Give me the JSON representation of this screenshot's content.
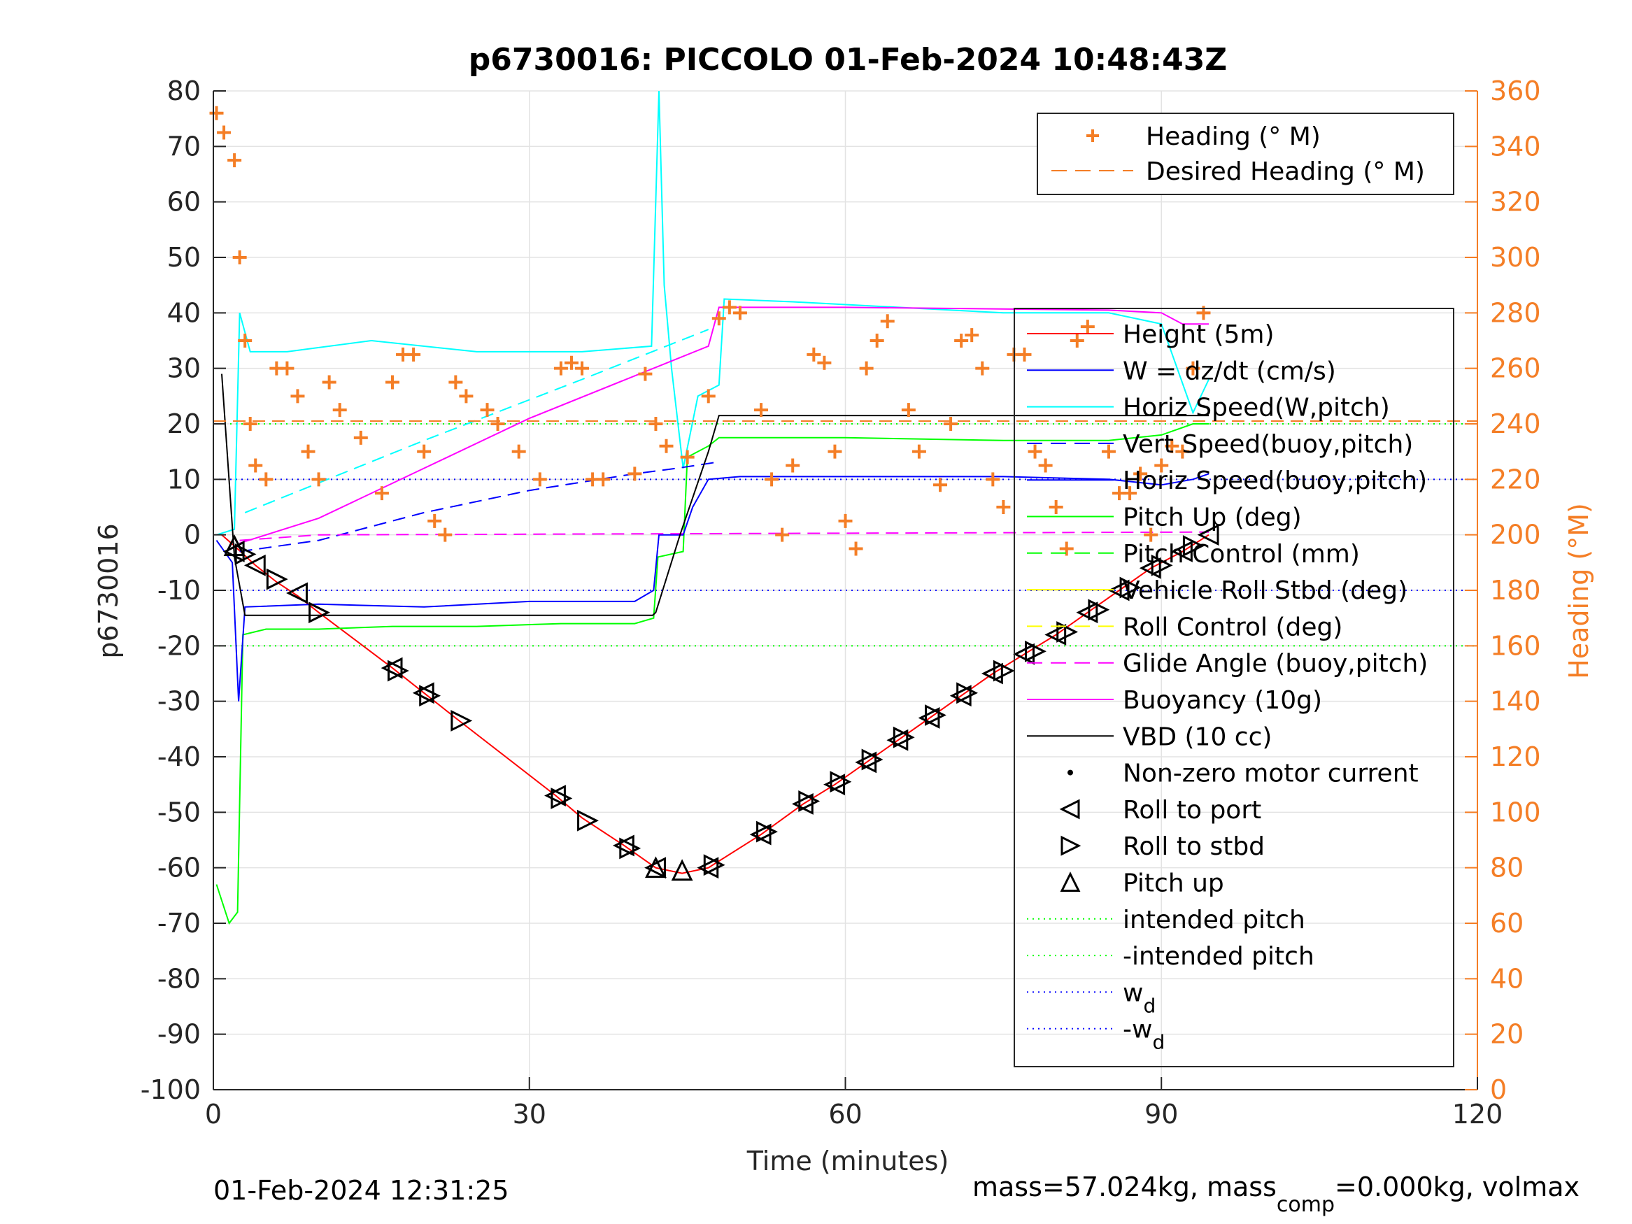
{
  "chart_data": {
    "type": "line",
    "title": "p6730016: PICCOLO 01-Feb-2024 10:48:43Z",
    "xlabel": "Time (minutes)",
    "ylabel_left": "p6730016",
    "ylabel_right": "Heading (°M)",
    "xlim": [
      0,
      120
    ],
    "ylim_left": [
      -100,
      80
    ],
    "ylim_right": [
      0,
      360
    ],
    "xticks": [
      "0",
      "30",
      "60",
      "90",
      "120"
    ],
    "yticks_left": [
      "80",
      "70",
      "60",
      "50",
      "40",
      "30",
      "20",
      "10",
      "0",
      "-10",
      "-20",
      "-30",
      "-40",
      "-50",
      "-60",
      "-70",
      "-80",
      "-90",
      "-100"
    ],
    "yticks_right": [
      "360",
      "340",
      "320",
      "300",
      "280",
      "260",
      "240",
      "220",
      "200",
      "180",
      "160",
      "140",
      "120",
      "100",
      "80",
      "60",
      "40",
      "20",
      "0"
    ],
    "grid": true,
    "footer_left": "01-Feb-2024 12:31:25",
    "footer_right_main": "mass=57.024kg, mass",
    "footer_right_sub": "comp",
    "footer_right_tail": "=0.000kg, volmax",
    "heading_legend": {
      "placement": "top-right",
      "entries": [
        "Heading (° M)",
        "Desired Heading (° M)"
      ]
    },
    "main_legend": {
      "placement": "right",
      "entries": [
        {
          "label": "Height (5m)",
          "color": "#ff0000",
          "style": "solid"
        },
        {
          "label": "W = dz/dt (cm/s)",
          "color": "#0000ff",
          "style": "solid"
        },
        {
          "label": "Horiz Speed(W,pitch)",
          "color": "#00ffff",
          "style": "solid"
        },
        {
          "label": "Vert Speed(buoy,pitch)",
          "color": "#0000ff",
          "style": "dashed"
        },
        {
          "label": "Horiz Speed(buoy,pitch)",
          "color": "#0000ff",
          "style": "solid"
        },
        {
          "label": "Pitch Up (deg)",
          "color": "#00ff00",
          "style": "solid"
        },
        {
          "label": "Pitch Control (mm)",
          "color": "#00ff00",
          "style": "dashed"
        },
        {
          "label": "Vehicle Roll Stbd (deg)",
          "color": "#ffff00",
          "style": "solid"
        },
        {
          "label": "Roll Control (deg)",
          "color": "#ffff00",
          "style": "dashed"
        },
        {
          "label": "Glide Angle (buoy,pitch)",
          "color": "#ff00ff",
          "style": "dashed"
        },
        {
          "label": "Buoyancy (10g)",
          "color": "#ff00ff",
          "style": "solid"
        },
        {
          "label": "VBD (10 cc)",
          "color": "#000000",
          "style": "solid"
        },
        {
          "label": "Non-zero motor current",
          "color": "#000000",
          "style": "dot"
        },
        {
          "label": "Roll to port",
          "color": "#000000",
          "style": "tri-left"
        },
        {
          "label": "Roll to stbd",
          "color": "#000000",
          "style": "tri-right"
        },
        {
          "label": "Pitch up",
          "color": "#000000",
          "style": "tri-up"
        },
        {
          "label": "intended pitch",
          "color": "#00ff00",
          "style": "dotted"
        },
        {
          "label": "-intended pitch",
          "color": "#00ff00",
          "style": "dotted"
        },
        {
          "label": "w",
          "sub": "d",
          "color": "#0000ff",
          "style": "dotted"
        },
        {
          "label": "-w",
          "sub": "d",
          "color": "#0000ff",
          "style": "dotted"
        }
      ]
    },
    "series": [
      {
        "name": "Height (5m)",
        "axis": "left",
        "color": "#ff0000",
        "x": [
          0.8,
          2,
          4,
          6,
          8,
          10,
          17,
          20,
          23,
          32.5,
          35,
          39,
          42,
          44.5,
          47,
          52,
          56,
          59,
          62,
          65,
          68,
          71,
          74,
          77,
          80,
          83,
          86,
          89,
          92,
          94.5
        ],
        "y": [
          0,
          -2,
          -5.5,
          -8.5,
          -11,
          -14,
          -24,
          -28.5,
          -33,
          -47,
          -51,
          -56,
          -60,
          -61,
          -60,
          -54,
          -48.5,
          -45,
          -41,
          -37,
          -33,
          -29,
          -25,
          -21.5,
          -18,
          -14,
          -10,
          -6,
          -3,
          0
        ]
      },
      {
        "name": "Pitch Up (deg)",
        "axis": "left",
        "color": "#00ff00",
        "x": [
          0.3,
          1.5,
          2.3,
          2.8,
          5,
          10,
          17,
          25,
          33,
          40,
          41.8,
          42.2,
          44.6,
          45,
          47,
          48,
          60,
          75,
          85,
          90,
          93,
          94.5
        ],
        "y": [
          -63,
          -70,
          -68,
          -18,
          -17,
          -17,
          -16.5,
          -16.5,
          -16,
          -16,
          -15,
          -4,
          -3,
          14,
          16,
          17.5,
          17.5,
          17,
          17,
          18,
          20,
          20
        ]
      },
      {
        "name": "W = dz/dt (cm/s)",
        "axis": "left",
        "color": "#0000ff",
        "x": [
          0.3,
          1.8,
          2.4,
          3,
          10,
          20,
          30,
          40,
          41.8,
          42.3,
          44.6,
          45.5,
          47,
          50,
          60,
          75,
          85,
          90,
          93,
          94.5
        ],
        "y": [
          -1,
          -5,
          -30,
          -13,
          -12.5,
          -13,
          -12,
          -12,
          -10,
          0,
          0,
          5,
          10,
          10.5,
          10.5,
          10.5,
          10,
          9,
          10,
          11
        ]
      },
      {
        "name": "Horiz Speed(W,pitch)",
        "axis": "left",
        "color": "#00ffff",
        "x": [
          0.3,
          2,
          2.5,
          3.5,
          7,
          15,
          25,
          35,
          41.6,
          42.3,
          42.8,
          43.5,
          44.6,
          46,
          48,
          48.5,
          55,
          65,
          75,
          85,
          90,
          93,
          94.5
        ],
        "y": [
          0,
          1,
          40,
          33,
          33,
          35,
          33,
          33,
          34,
          80,
          45,
          30,
          12,
          25,
          27,
          42.5,
          42,
          41,
          40,
          40,
          38,
          22,
          28
        ]
      },
      {
        "name": "Vert Speed(buoy,pitch)",
        "axis": "left",
        "color": "#0000ff",
        "dashed": true,
        "x": [
          2.5,
          10,
          20,
          30,
          40,
          44,
          47.5
        ],
        "y": [
          -3,
          -1,
          4,
          8,
          11,
          12,
          13
        ]
      },
      {
        "name": "Glide Angle (buoy,pitch)",
        "axis": "left",
        "color": "#ff00ff",
        "dashed": true,
        "x": [
          2.5,
          10,
          94.5
        ],
        "y": [
          -1,
          0,
          0.5
        ]
      },
      {
        "name": "Buoyancy (10g)",
        "axis": "left",
        "color": "#ff00ff",
        "x": [
          2.5,
          10,
          20,
          30,
          47,
          48,
          60,
          85,
          90,
          92,
          94.5
        ],
        "y": [
          -1.5,
          3,
          12,
          21,
          34,
          41,
          41,
          40.5,
          40,
          38,
          38
        ]
      },
      {
        "name": "VBD (10 cc)",
        "axis": "left",
        "color": "#000000",
        "x": [
          0.8,
          2,
          3,
          10,
          41.7,
          42,
          44.3,
          47,
          48,
          94.5
        ],
        "y": [
          29,
          -4,
          -14.5,
          -14.5,
          -14.5,
          -14,
          0,
          15,
          21.5,
          21.5
        ]
      },
      {
        "name": "Horiz Speed cyan dashed",
        "axis": "left",
        "color": "#00ffff",
        "dashed": true,
        "x": [
          3,
          20,
          35,
          47
        ],
        "y": [
          4,
          17,
          28,
          37
        ]
      },
      {
        "name": "Heading (° M)",
        "axis": "right",
        "color": "#f47e26",
        "marker": "+",
        "x": [
          0.3,
          1,
          2,
          2.5,
          3,
          3.5,
          4,
          5,
          6,
          7,
          8,
          9,
          10,
          11,
          12,
          14,
          16,
          17,
          18,
          19,
          20,
          21,
          22,
          23,
          24,
          26,
          27,
          29,
          31,
          33,
          34,
          35,
          36,
          37,
          40,
          41,
          42,
          43,
          45,
          47,
          48,
          49,
          50,
          52,
          53,
          54,
          55,
          57,
          58,
          59,
          60,
          61,
          62,
          63,
          64,
          66,
          67,
          69,
          70,
          71,
          72,
          73,
          74,
          75,
          76,
          77,
          78,
          79,
          80,
          81,
          82,
          83,
          85,
          86,
          87,
          88,
          89,
          90,
          91,
          92,
          93,
          94
        ],
        "y": [
          352,
          345,
          335,
          300,
          270,
          240,
          225,
          220,
          260,
          260,
          250,
          230,
          220,
          255,
          245,
          235,
          215,
          255,
          265,
          265,
          230,
          205,
          200,
          255,
          250,
          245,
          240,
          230,
          220,
          260,
          262,
          260,
          220,
          220,
          222,
          258,
          240,
          232,
          228,
          250,
          278,
          282,
          280,
          245,
          220,
          200,
          225,
          265,
          262,
          230,
          205,
          195,
          260,
          270,
          277,
          245,
          230,
          218,
          240,
          270,
          272,
          260,
          220,
          210,
          265,
          265,
          230,
          225,
          210,
          195,
          270,
          275,
          230,
          215,
          215,
          222,
          200,
          225,
          232,
          230,
          260,
          280
        ]
      },
      {
        "name": "Desired Heading (° M)",
        "axis": "right",
        "color": "#f47e26",
        "dashed": true,
        "x": [
          0,
          120
        ],
        "y": [
          241,
          241
        ]
      }
    ],
    "reference_lines": [
      {
        "name": "intended pitch",
        "axis": "left",
        "y": 20,
        "color": "#00ff00"
      },
      {
        "name": "-intended pitch",
        "axis": "left",
        "y": -20,
        "color": "#00ff00"
      },
      {
        "name": "w_d",
        "axis": "left",
        "y": 10,
        "color": "#0000ff"
      },
      {
        "name": "-w_d",
        "axis": "left",
        "y": -10,
        "color": "#0000ff"
      }
    ],
    "markers": {
      "roll_to_port": {
        "x": [
          2,
          4,
          8,
          17,
          20,
          32.5,
          39,
          42,
          47,
          52,
          56,
          59,
          62,
          65,
          68,
          71,
          74,
          77,
          80,
          83,
          86,
          89,
          92,
          94.5
        ],
        "y": [
          -3,
          -5.5,
          -10.5,
          -24,
          -28.5,
          -47,
          -56,
          -60,
          -60,
          -54,
          -48.5,
          -45,
          -41,
          -37,
          -33,
          -29,
          -25,
          -21.5,
          -18,
          -14,
          -10,
          -6,
          -3,
          0
        ]
      },
      "roll_to_stbd": {
        "x": [
          3,
          6,
          10,
          17.5,
          20.5,
          23.5,
          33,
          35.5,
          39.5,
          47.5,
          52.5,
          56.5,
          59.5,
          62.5,
          65.5,
          68.5,
          71.5,
          75,
          78,
          81,
          84,
          87,
          90,
          93
        ],
        "y": [
          -3.5,
          -8,
          -14,
          -24.5,
          -29,
          -33.5,
          -47.5,
          -51.5,
          -56.5,
          -59.5,
          -53.5,
          -48,
          -44.5,
          -40.5,
          -36.5,
          -32.5,
          -28.5,
          -24.5,
          -21,
          -17.5,
          -13.5,
          -9.5,
          -5.5,
          -2
        ]
      },
      "pitch_up": {
        "x": [
          2,
          42,
          44.5
        ],
        "y": [
          -2,
          -60,
          -60.5
        ]
      }
    }
  }
}
